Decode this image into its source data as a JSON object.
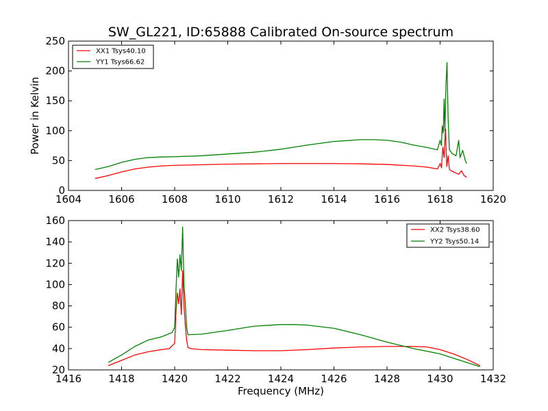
{
  "figure_title": "SW_GL221, ID:65888 Calibrated On-source spectrum",
  "colors": {
    "XX": "#ff0000",
    "YY": "#008000",
    "axes": "#000000"
  },
  "chart_data": [
    {
      "type": "line",
      "title": "SW_GL221, ID:65888 Calibrated On-source spectrum",
      "xlabel": "",
      "ylabel": "Power in Kelvin",
      "xlim": [
        1604,
        1620
      ],
      "ylim": [
        0,
        250
      ],
      "xticks": [
        1604,
        1606,
        1608,
        1610,
        1612,
        1614,
        1616,
        1618,
        1620
      ],
      "yticks": [
        0,
        50,
        100,
        150,
        200,
        250
      ],
      "grid": false,
      "legend_position": "upper-left",
      "series": [
        {
          "name": "XX1 Tsys40.10",
          "color": "#ff0000",
          "x": [
            1605.0,
            1605.5,
            1606.0,
            1606.5,
            1607.0,
            1607.5,
            1608.0,
            1609.0,
            1610.0,
            1611.0,
            1612.0,
            1613.0,
            1614.0,
            1615.0,
            1616.0,
            1617.0,
            1617.5,
            1617.9,
            1618.0,
            1618.05,
            1618.1,
            1618.15,
            1618.2,
            1618.25,
            1618.3,
            1618.35,
            1618.45,
            1618.55,
            1618.7,
            1618.8,
            1618.9,
            1619.0
          ],
          "y": [
            20,
            25,
            31,
            36,
            39,
            41,
            42,
            43,
            44,
            44.5,
            45,
            45,
            45,
            44.5,
            43.5,
            41,
            39,
            36,
            45,
            38,
            72,
            55,
            103,
            40,
            58,
            35,
            32,
            30,
            27,
            33,
            25,
            22
          ]
        },
        {
          "name": "YY1 Tsys66.62",
          "color": "#008000",
          "x": [
            1605.0,
            1605.5,
            1606.0,
            1606.5,
            1607.0,
            1607.5,
            1608.0,
            1609.0,
            1610.0,
            1611.0,
            1612.0,
            1613.0,
            1614.0,
            1615.0,
            1615.5,
            1616.0,
            1616.5,
            1617.0,
            1617.5,
            1617.9,
            1618.0,
            1618.05,
            1618.08,
            1618.12,
            1618.15,
            1618.18,
            1618.22,
            1618.26,
            1618.3,
            1618.35,
            1618.45,
            1618.6,
            1618.7,
            1618.75,
            1618.85,
            1618.95,
            1619.0
          ],
          "y": [
            35,
            40,
            47,
            52,
            55,
            56,
            56.5,
            58,
            61,
            64,
            69,
            76,
            82,
            85,
            85,
            84,
            81,
            76,
            72,
            68,
            84,
            75,
            108,
            96,
            153,
            100,
            176,
            214,
            122,
            68,
            62,
            58,
            84,
            55,
            67,
            50,
            45
          ]
        }
      ]
    },
    {
      "type": "line",
      "title": "",
      "xlabel": "Frequency (MHz)",
      "ylabel": "",
      "xlim": [
        1416,
        1432
      ],
      "ylim": [
        20,
        160
      ],
      "xticks": [
        1416,
        1418,
        1420,
        1422,
        1424,
        1426,
        1428,
        1430,
        1432
      ],
      "yticks": [
        20,
        40,
        60,
        80,
        100,
        120,
        140,
        160
      ],
      "grid": false,
      "legend_position": "upper-right",
      "series": [
        {
          "name": "XX2 Tsys38.60",
          "color": "#ff0000",
          "x": [
            1417.5,
            1418.0,
            1418.5,
            1419.0,
            1419.5,
            1419.8,
            1420.0,
            1420.05,
            1420.1,
            1420.15,
            1420.2,
            1420.25,
            1420.3,
            1420.35,
            1420.4,
            1420.45,
            1420.5,
            1420.6,
            1421.0,
            1422.0,
            1423.0,
            1424.0,
            1425.0,
            1426.0,
            1427.0,
            1428.0,
            1429.0,
            1429.5,
            1430.0,
            1430.5,
            1431.0,
            1431.5
          ],
          "y": [
            24,
            29,
            34,
            37,
            39,
            40,
            45,
            75,
            92,
            82,
            96,
            72,
            113,
            80,
            62,
            48,
            41,
            40,
            39,
            38.5,
            38,
            38,
            39,
            40.5,
            41.5,
            42,
            42,
            41.5,
            39,
            35,
            30,
            24
          ]
        },
        {
          "name": "YY2 Tsys50.14",
          "color": "#008000",
          "x": [
            1417.5,
            1418.0,
            1418.5,
            1419.0,
            1419.5,
            1419.9,
            1420.0,
            1420.05,
            1420.1,
            1420.15,
            1420.2,
            1420.25,
            1420.3,
            1420.35,
            1420.4,
            1420.45,
            1420.5,
            1421.0,
            1422.0,
            1423.0,
            1424.0,
            1424.5,
            1425.0,
            1426.0,
            1427.0,
            1428.0,
            1429.0,
            1430.0,
            1430.5,
            1431.0,
            1431.5
          ],
          "y": [
            27,
            34,
            42,
            48,
            51,
            55,
            60,
            95,
            124,
            107,
            128,
            113,
            154,
            100,
            83,
            60,
            53,
            53.5,
            57,
            61,
            62.5,
            62.5,
            62,
            59,
            53,
            46,
            40,
            35,
            31,
            27,
            23
          ]
        }
      ]
    }
  ]
}
